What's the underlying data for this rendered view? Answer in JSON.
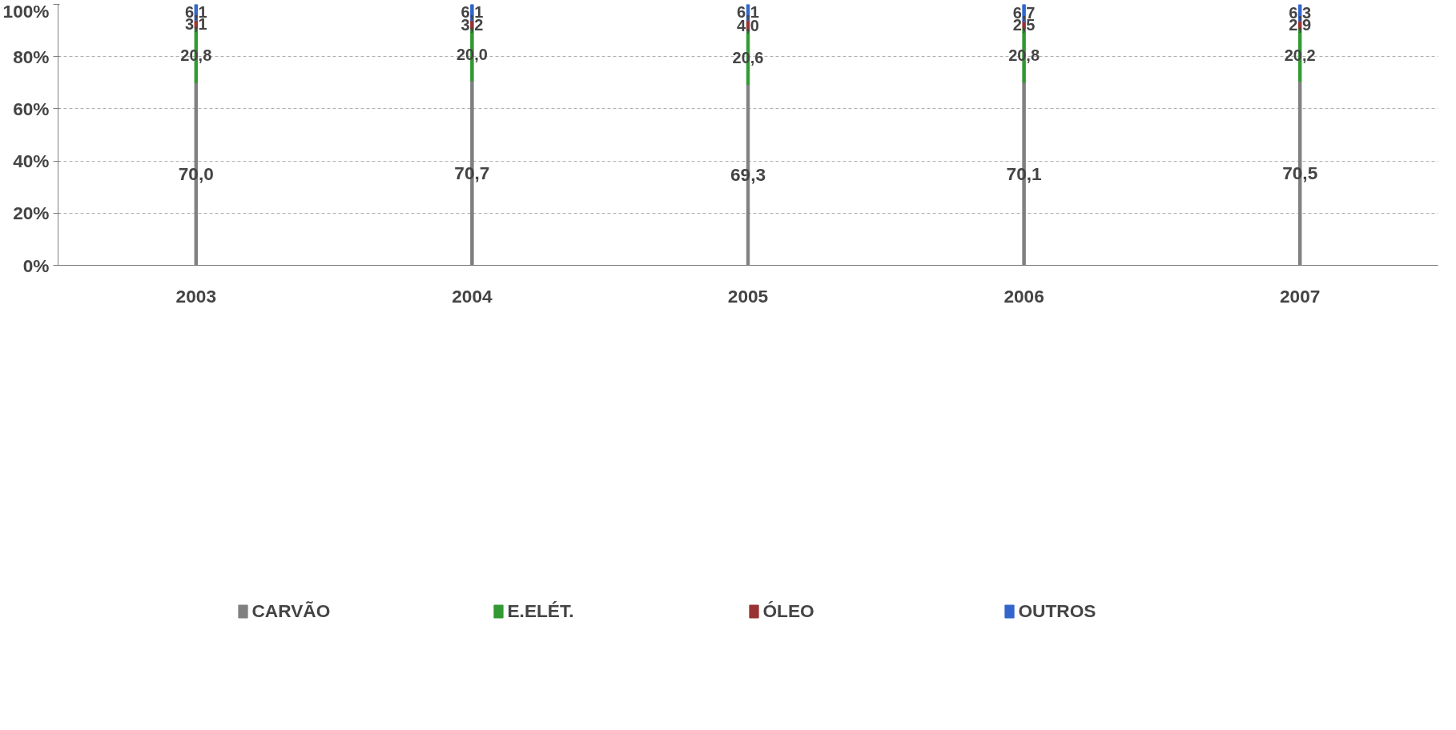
{
  "chart_data": {
    "type": "bar",
    "stacked": true,
    "categories": [
      "2003",
      "2004",
      "2005",
      "2006",
      "2007"
    ],
    "ylim": [
      0,
      100
    ],
    "yticks": [
      {
        "value": 0,
        "label": "0%"
      },
      {
        "value": 20,
        "label": "20%"
      },
      {
        "value": 40,
        "label": "40%"
      },
      {
        "value": 60,
        "label": "60%"
      },
      {
        "value": 80,
        "label": "80%"
      },
      {
        "value": 100,
        "label": "100%"
      }
    ],
    "grid": "y",
    "legend": "bottom",
    "series": [
      {
        "name": "CARVÃO",
        "color": "#808080",
        "values": [
          70.0,
          70.7,
          69.3,
          70.1,
          70.5
        ],
        "value_labels": [
          "70,0",
          "70,7",
          "69,3",
          "70,1",
          "70,5"
        ]
      },
      {
        "name": "E.ELÉT.",
        "color": "#339933",
        "values": [
          20.8,
          20.0,
          20.6,
          20.8,
          20.2
        ],
        "value_labels": [
          "20,8",
          "20,0",
          "20,6",
          "20,8",
          "20,2"
        ]
      },
      {
        "name": "ÓLEO",
        "color": "#993333",
        "values": [
          3.1,
          3.2,
          4.0,
          2.5,
          2.9
        ],
        "value_labels": [
          "3,1",
          "3,2",
          "4,0",
          "2,5",
          "2,9"
        ]
      },
      {
        "name": "OUTROS",
        "color": "#3366cc",
        "values": [
          6.1,
          6.1,
          6.1,
          6.7,
          6.3
        ],
        "value_labels": [
          "6,1",
          "6,1",
          "6,1",
          "6,7",
          "6,3"
        ]
      }
    ]
  }
}
